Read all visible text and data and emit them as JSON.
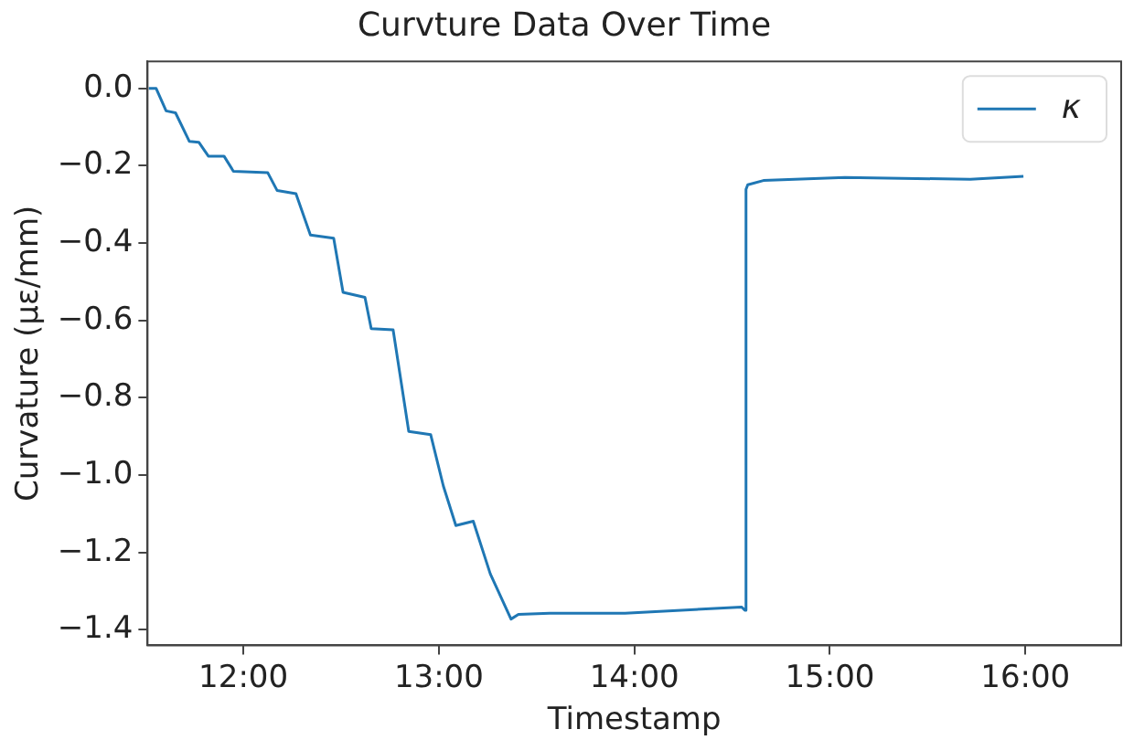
{
  "chart_data": {
    "type": "line",
    "title": "Curvture Data Over Time",
    "xlabel": "Timestamp",
    "ylabel": "Curvature (με/mm)",
    "xlim": [
      11.51,
      16.49
    ],
    "xticks": [
      {
        "value": 12,
        "label": "12:00"
      },
      {
        "value": 13,
        "label": "13:00"
      },
      {
        "value": 14,
        "label": "14:00"
      },
      {
        "value": 15,
        "label": "15:00"
      },
      {
        "value": 16,
        "label": "16:00"
      }
    ],
    "ylim": [
      -1.44,
      0.07
    ],
    "yticks": [
      {
        "value": 0,
        "label": "0.0"
      },
      {
        "value": -0.2,
        "label": "−0.2"
      },
      {
        "value": -0.4,
        "label": "−0.4"
      },
      {
        "value": -0.6,
        "label": "−0.6"
      },
      {
        "value": -0.8,
        "label": "−0.8"
      },
      {
        "value": -1.0,
        "label": "−1.0"
      },
      {
        "value": -1.2,
        "label": "−1.2"
      },
      {
        "value": -1.4,
        "label": "−1.4"
      }
    ],
    "grid": false,
    "legend": "top right",
    "series": [
      {
        "name": "κ",
        "color": "#1f77b4",
        "x": [
          11.516,
          11.554,
          11.605,
          11.653,
          11.724,
          11.772,
          11.821,
          11.901,
          11.949,
          12.125,
          12.173,
          12.269,
          12.343,
          12.462,
          12.51,
          12.622,
          12.654,
          12.766,
          12.846,
          12.958,
          13.023,
          13.087,
          13.176,
          13.263,
          13.369,
          13.407,
          13.567,
          13.952,
          14.549,
          14.565,
          14.571,
          14.58,
          14.66,
          15.077,
          15.718,
          15.99
        ],
        "values": [
          0,
          0,
          -0.058,
          -0.063,
          -0.137,
          -0.139,
          -0.175,
          -0.175,
          -0.214,
          -0.218,
          -0.264,
          -0.272,
          -0.379,
          -0.387,
          -0.527,
          -0.54,
          -0.621,
          -0.624,
          -0.887,
          -0.895,
          -1.028,
          -1.13,
          -1.119,
          -1.255,
          -1.372,
          -1.36,
          -1.357,
          -1.357,
          -1.341,
          -1.349,
          -0.261,
          -0.249,
          -0.238,
          -0.23,
          -0.235,
          -0.227
        ]
      }
    ]
  }
}
